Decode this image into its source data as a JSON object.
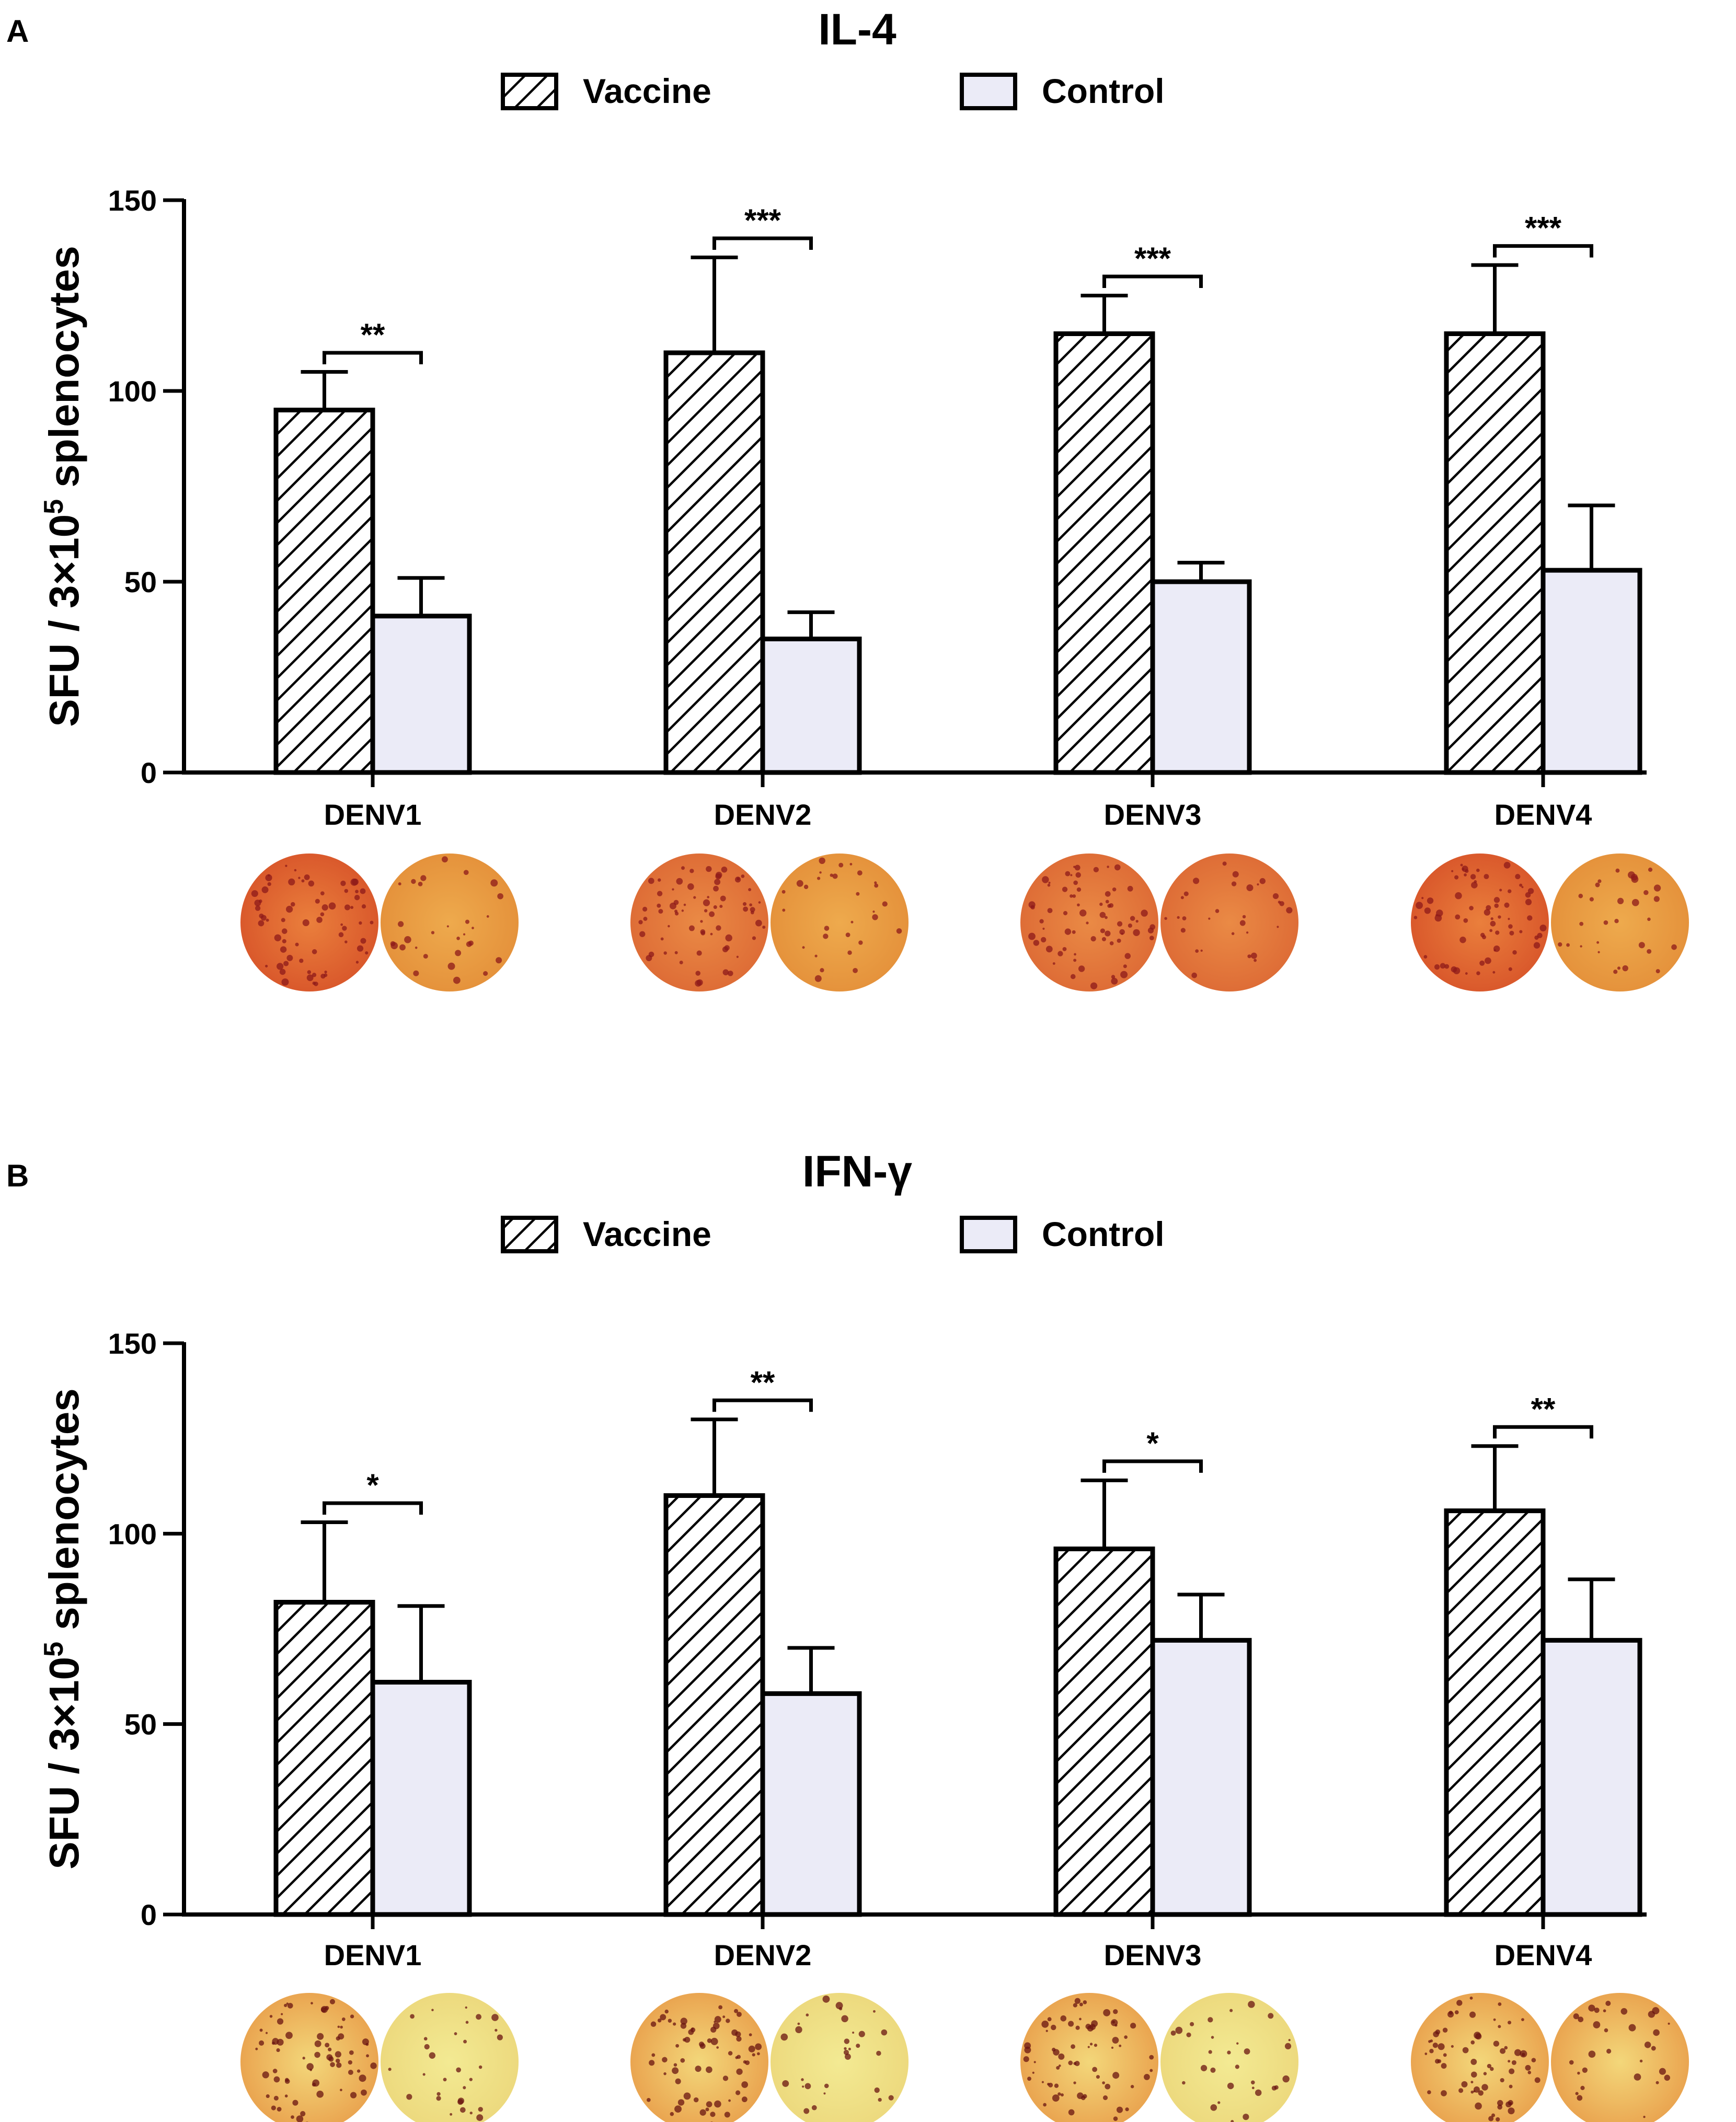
{
  "chart_data": [
    {
      "type": "bar",
      "panel_label": "A",
      "title": "IL-4",
      "ylabel_main": "SFU / 3×10",
      "ylabel_exponent": "5",
      "ylabel_suffix": " splenocytes",
      "ylim": [
        0,
        150
      ],
      "yticks": [
        "0",
        "50",
        "100",
        "150"
      ],
      "categories": [
        "DENV1",
        "DENV2",
        "DENV3",
        "DENV4"
      ],
      "series": [
        {
          "name": "Vaccine",
          "pattern": "hatched",
          "values": [
            95,
            110,
            115,
            115
          ],
          "errors": [
            10,
            25,
            10,
            18
          ]
        },
        {
          "name": "Control",
          "pattern": "solid",
          "values": [
            41,
            35,
            50,
            53
          ],
          "errors": [
            10,
            7,
            5,
            17
          ]
        }
      ],
      "significance": [
        "**",
        "***",
        "***",
        "***"
      ],
      "legend_position": "top",
      "colors": {
        "control_fill": "#ebebf7",
        "stroke": "#000000"
      },
      "well_photos": "ELISpot well images below each category (vaccine left, control right)"
    },
    {
      "type": "bar",
      "panel_label": "B",
      "title": "IFN-γ",
      "ylabel_main": "SFU / 3×10",
      "ylabel_exponent": "5",
      "ylabel_suffix": " splenocytes",
      "ylim": [
        0,
        150
      ],
      "yticks": [
        "0",
        "50",
        "100",
        "150"
      ],
      "categories": [
        "DENV1",
        "DENV2",
        "DENV3",
        "DENV4"
      ],
      "series": [
        {
          "name": "Vaccine",
          "pattern": "hatched",
          "values": [
            82,
            110,
            96,
            106
          ],
          "errors": [
            21,
            20,
            18,
            17
          ]
        },
        {
          "name": "Control",
          "pattern": "solid",
          "values": [
            61,
            58,
            72,
            72
          ],
          "errors": [
            20,
            12,
            12,
            16
          ]
        }
      ],
      "significance": [
        "*",
        "**",
        "*",
        "**"
      ],
      "legend_position": "top",
      "colors": {
        "control_fill": "#ebebf7",
        "stroke": "#000000"
      },
      "well_photos": "ELISpot well images below each category (vaccine left, control right)"
    }
  ]
}
